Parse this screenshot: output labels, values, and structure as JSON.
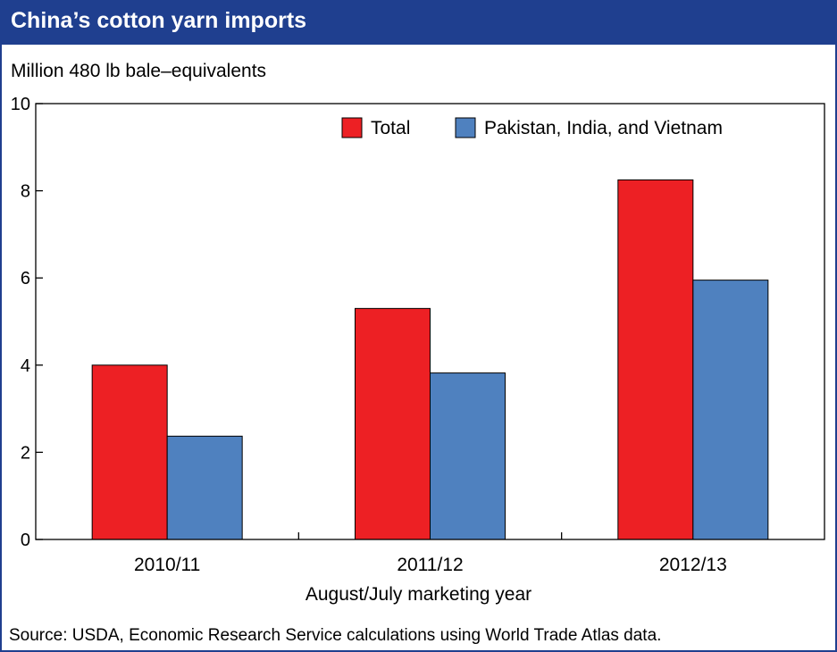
{
  "header": {
    "title": "China’s cotton yarn imports"
  },
  "source_note": "Source: USDA, Economic Research Service calculations using World Trade Atlas data.",
  "chart_data": {
    "type": "bar",
    "title": "China’s cotton yarn imports",
    "ylabel": "Million 480 lb bale–equivalents",
    "xlabel": "August/July marketing year",
    "categories": [
      "2010/11",
      "2011/12",
      "2012/13"
    ],
    "series": [
      {
        "name": "Total",
        "color": "#ed2024",
        "values": [
          4.0,
          5.3,
          8.25
        ]
      },
      {
        "name": "Pakistan, India, and Vietnam",
        "color": "#4f81bf",
        "values": [
          2.37,
          3.82,
          5.95
        ]
      }
    ],
    "ylim": [
      0,
      10
    ],
    "yticks": [
      0,
      2,
      4,
      6,
      8,
      10
    ],
    "legend_position": "top-right",
    "grid": false
  }
}
